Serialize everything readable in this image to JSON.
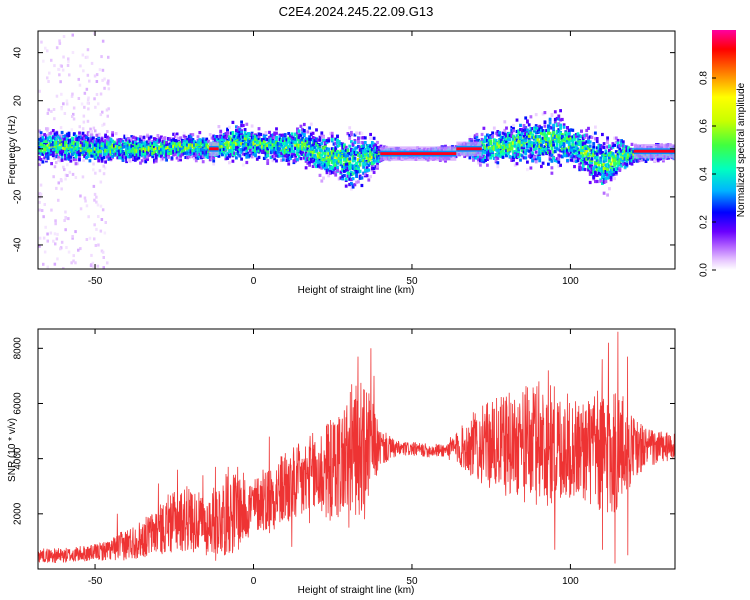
{
  "title": "C2E4.2024.245.22.09.G13",
  "charts": [
    {
      "type": "heatmap",
      "xlabel": "Height of straight line (km)",
      "ylabel": "Frequency (Hz)",
      "xlim": [
        -68,
        133
      ],
      "ylim": [
        -50,
        49
      ],
      "xticks": [
        -50,
        0,
        50,
        100
      ],
      "yticks": [
        -40,
        -20,
        0,
        20,
        40
      ],
      "colorbar": {
        "label": "Normalized spectral amplitude",
        "range": [
          0,
          1
        ],
        "ticks": [
          "0.0",
          "0.2",
          "0.4",
          "0.6",
          "0.8"
        ],
        "colors": [
          "#ffffff",
          "#e8c8ff",
          "#b060ff",
          "#6a00ff",
          "#0000ff",
          "#00b4ff",
          "#00ffc0",
          "#40ff40",
          "#c8ff00",
          "#ffff00",
          "#ff8000",
          "#ff0000",
          "#ff00a0"
        ]
      },
      "ridge": {
        "x": [
          -68,
          -60,
          -50,
          -40,
          -30,
          -20,
          -15,
          -10,
          -5,
          0,
          5,
          10,
          15,
          20,
          25,
          30,
          35,
          40,
          45,
          50,
          55,
          60,
          65,
          70,
          75,
          80,
          85,
          90,
          95,
          100,
          105,
          110,
          115,
          120,
          125,
          133
        ],
        "freq_center": [
          1,
          1,
          0,
          0,
          0,
          1,
          0,
          1,
          3,
          2,
          1,
          1,
          2,
          -2,
          -3,
          -5,
          -4,
          -2,
          -2,
          -2,
          -2,
          -2,
          0,
          0,
          1,
          1,
          3,
          3,
          4,
          2,
          -2,
          -7,
          -3,
          -2,
          -2,
          -1
        ],
        "freq_spread": [
          6,
          6,
          6,
          5,
          5,
          5,
          5,
          7,
          8,
          6,
          6,
          7,
          8,
          9,
          10,
          11,
          10,
          3,
          2,
          2,
          2,
          3,
          2,
          6,
          7,
          8,
          9,
          10,
          12,
          8,
          10,
          12,
          8,
          3,
          3,
          3
        ]
      }
    },
    {
      "type": "line",
      "xlabel": "Height of straight line (km)",
      "ylabel": "SNR (10 * v/v)",
      "xlim": [
        -68,
        133
      ],
      "ylim": [
        0,
        8700
      ],
      "xticks": [
        -50,
        0,
        50,
        100
      ],
      "yticks": [
        2000,
        4000,
        6000,
        8000
      ],
      "series_color": "#ee3333",
      "envelope": {
        "x": [
          -68,
          -60,
          -50,
          -45,
          -40,
          -35,
          -30,
          -25,
          -20,
          -15,
          -10,
          -5,
          0,
          5,
          10,
          15,
          20,
          25,
          30,
          35,
          40,
          45,
          50,
          55,
          60,
          65,
          70,
          75,
          80,
          85,
          90,
          95,
          100,
          105,
          110,
          115,
          120,
          125,
          133
        ],
        "center": [
          500,
          480,
          600,
          700,
          900,
          1100,
          1400,
          1700,
          1800,
          1600,
          1900,
          2100,
          2300,
          2600,
          2900,
          3100,
          3400,
          3600,
          4100,
          4500,
          4400,
          4350,
          4350,
          4300,
          4300,
          4400,
          4500,
          4500,
          4500,
          4500,
          4500,
          4500,
          4400,
          4300,
          4200,
          4300,
          4400,
          4400,
          4400
        ],
        "amplitude": [
          250,
          280,
          300,
          400,
          600,
          700,
          900,
          1100,
          1200,
          1000,
          1500,
          1500,
          1000,
          1200,
          1400,
          1500,
          1700,
          1900,
          2300,
          2500,
          700,
          300,
          250,
          250,
          250,
          700,
          1300,
          1600,
          1900,
          2100,
          2300,
          2200,
          1900,
          1900,
          2400,
          2400,
          1100,
          700,
          500
        ],
        "spikes": [
          [
            -43,
            2000
          ],
          [
            -30,
            3100
          ],
          [
            -27,
            2700
          ],
          [
            -24,
            3600
          ],
          [
            -21,
            3000
          ],
          [
            -16,
            3400
          ],
          [
            -12,
            3700
          ],
          [
            -8,
            3700
          ],
          [
            -5,
            3700
          ],
          [
            3,
            3600
          ],
          [
            5,
            4800
          ],
          [
            10,
            4200
          ],
          [
            16,
            4000
          ],
          [
            19,
            4500
          ],
          [
            23,
            5200
          ],
          [
            31,
            6700
          ],
          [
            33,
            7700
          ],
          [
            35,
            6500
          ],
          [
            37,
            8000
          ],
          [
            38,
            7000
          ],
          [
            84,
            6000
          ],
          [
            90,
            6800
          ],
          [
            93,
            7200
          ],
          [
            110,
            7600
          ],
          [
            112,
            8200
          ],
          [
            115,
            8600
          ],
          [
            118,
            7700
          ]
        ],
        "dips": [
          [
            -15,
            500
          ],
          [
            -12,
            300
          ],
          [
            5,
            1300
          ],
          [
            12,
            800
          ],
          [
            30,
            1500
          ],
          [
            35,
            1800
          ],
          [
            95,
            700
          ],
          [
            110,
            700
          ],
          [
            114,
            200
          ],
          [
            118,
            500
          ]
        ]
      }
    }
  ]
}
